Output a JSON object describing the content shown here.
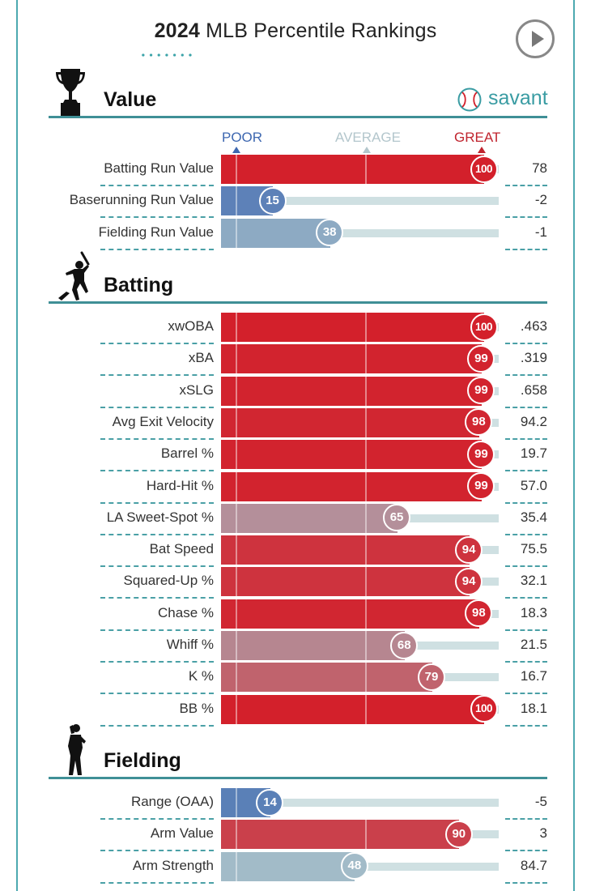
{
  "header": {
    "year": "2024",
    "title_rest": "MLB Percentile Rankings"
  },
  "brand": {
    "name": "savant"
  },
  "scale": {
    "poor": "POOR",
    "average": "AVERAGE",
    "great": "GREAT"
  },
  "colors": {
    "poor": "#3d67b0",
    "great": "#d3202b",
    "average": "#a6bfc9",
    "accent": "#3f8f96"
  },
  "sections": [
    {
      "id": "value",
      "title": "Value",
      "icon": "trophy-icon",
      "metrics": [
        {
          "label": "Batting Run Value",
          "percentile": 100,
          "value": "78"
        },
        {
          "label": "Baserunning Run Value",
          "percentile": 15,
          "value": "-2"
        },
        {
          "label": "Fielding Run Value",
          "percentile": 38,
          "value": "-1"
        }
      ]
    },
    {
      "id": "batting",
      "title": "Batting",
      "icon": "batter-icon",
      "metrics": [
        {
          "label": "xwOBA",
          "percentile": 100,
          "value": ".463"
        },
        {
          "label": "xBA",
          "percentile": 99,
          "value": ".319"
        },
        {
          "label": "xSLG",
          "percentile": 99,
          "value": ".658"
        },
        {
          "label": "Avg Exit Velocity",
          "percentile": 98,
          "value": "94.2"
        },
        {
          "label": "Barrel %",
          "percentile": 99,
          "value": "19.7"
        },
        {
          "label": "Hard-Hit %",
          "percentile": 99,
          "value": "57.0"
        },
        {
          "label": "LA Sweet-Spot %",
          "percentile": 65,
          "value": "35.4"
        },
        {
          "label": "Bat Speed",
          "percentile": 94,
          "value": "75.5"
        },
        {
          "label": "Squared-Up %",
          "percentile": 94,
          "value": "32.1"
        },
        {
          "label": "Chase %",
          "percentile": 98,
          "value": "18.3"
        },
        {
          "label": "Whiff %",
          "percentile": 68,
          "value": "21.5"
        },
        {
          "label": "K %",
          "percentile": 79,
          "value": "16.7"
        },
        {
          "label": "BB %",
          "percentile": 100,
          "value": "18.1"
        }
      ]
    },
    {
      "id": "fielding",
      "title": "Fielding",
      "icon": "fielder-icon",
      "metrics": [
        {
          "label": "Range (OAA)",
          "percentile": 14,
          "value": "-5"
        },
        {
          "label": "Arm Value",
          "percentile": 90,
          "value": "3"
        },
        {
          "label": "Arm Strength",
          "percentile": 48,
          "value": "84.7"
        }
      ]
    }
  ],
  "chart_data": {
    "type": "bar",
    "title": "2024 MLB Percentile Rankings",
    "orientation": "horizontal",
    "xlim": [
      0,
      100
    ],
    "categories": [
      "Batting Run Value",
      "Baserunning Run Value",
      "Fielding Run Value",
      "xwOBA",
      "xBA",
      "xSLG",
      "Avg Exit Velocity",
      "Barrel %",
      "Hard-Hit %",
      "LA Sweet-Spot %",
      "Bat Speed",
      "Squared-Up %",
      "Chase %",
      "Whiff %",
      "K %",
      "BB %",
      "Range (OAA)",
      "Arm Value",
      "Arm Strength"
    ],
    "series": [
      {
        "values": [
          100,
          15,
          38,
          100,
          99,
          99,
          98,
          99,
          99,
          65,
          94,
          94,
          98,
          68,
          79,
          100,
          14,
          90,
          48
        ]
      }
    ],
    "raw_values": [
      "78",
      "-2",
      "-1",
      ".463",
      ".319",
      ".658",
      "94.2",
      "19.7",
      "57.0",
      "35.4",
      "75.5",
      "32.1",
      "18.3",
      "21.5",
      "16.7",
      "18.1",
      "-5",
      "3",
      "84.7"
    ],
    "scale_labels": [
      "POOR",
      "AVERAGE",
      "GREAT"
    ],
    "groups": [
      "Value",
      "Batting",
      "Fielding"
    ]
  }
}
